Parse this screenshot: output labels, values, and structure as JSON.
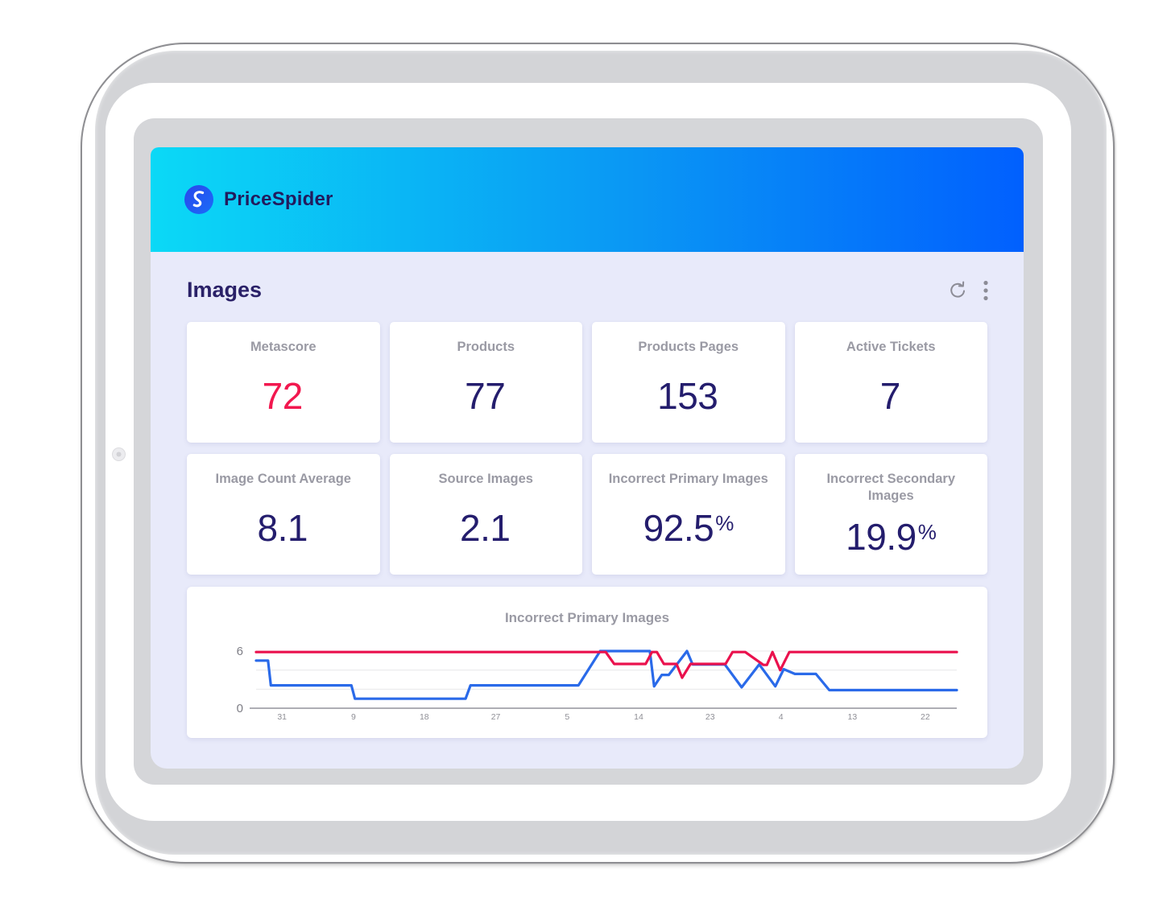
{
  "brand": {
    "name": "PriceSpider"
  },
  "page": {
    "title": "Images"
  },
  "toolbar": {
    "refresh_icon": "refresh",
    "menu_icon": "more-options"
  },
  "cards": [
    {
      "label": "Metascore",
      "value": "72",
      "suffix": "",
      "color": "#f2184f"
    },
    {
      "label": "Products",
      "value": "77",
      "suffix": "",
      "color": "#241d6d"
    },
    {
      "label": "Products Pages",
      "value": "153",
      "suffix": "",
      "color": "#241d6d"
    },
    {
      "label": "Active Tickets",
      "value": "7",
      "suffix": "",
      "color": "#241d6d"
    },
    {
      "label": "Image Count Average",
      "value": "8.1",
      "suffix": "",
      "color": "#241d6d"
    },
    {
      "label": "Source Images",
      "value": "2.1",
      "suffix": "",
      "color": "#241d6d"
    },
    {
      "label": "Incorrect Primary Images",
      "value": "92.5",
      "suffix": "%",
      "color": "#241d6d"
    },
    {
      "label": "Incorrect Secondary Images",
      "value": "19.9",
      "suffix": "%",
      "color": "#241d6d"
    }
  ],
  "chart_data": {
    "type": "line",
    "title": "Incorrect Primary Images",
    "xlabel": "",
    "ylabel": "",
    "ylim": [
      0,
      6
    ],
    "grid": true,
    "legend": "none",
    "y_gridlines": [
      6,
      4,
      2,
      0
    ],
    "y_axis_ticks": [
      {
        "label": "6",
        "value": 6
      },
      {
        "label": "0",
        "value": 0
      }
    ],
    "x_ticks": [
      {
        "label": "31",
        "pct": 3.7
      },
      {
        "label": "9",
        "pct": 13.9
      },
      {
        "label": "18",
        "pct": 24.0
      },
      {
        "label": "27",
        "pct": 34.2
      },
      {
        "label": "5",
        "pct": 44.4
      },
      {
        "label": "14",
        "pct": 54.6
      },
      {
        "label": "23",
        "pct": 64.8
      },
      {
        "label": "4",
        "pct": 74.9
      },
      {
        "label": "13",
        "pct": 85.1
      },
      {
        "label": "22",
        "pct": 95.5
      }
    ],
    "series": [
      {
        "name": "blue-series",
        "color": "#2a6ae9",
        "points": [
          [
            0,
            5
          ],
          [
            1.7,
            5
          ],
          [
            2.1,
            2.4
          ],
          [
            13.6,
            2.4
          ],
          [
            14.1,
            1
          ],
          [
            29.9,
            1
          ],
          [
            30.6,
            2.4
          ],
          [
            46,
            2.4
          ],
          [
            49.1,
            6
          ],
          [
            56.2,
            6
          ],
          [
            56.8,
            2.3
          ],
          [
            57.9,
            3.5
          ],
          [
            58.9,
            3.5
          ],
          [
            61.5,
            6
          ],
          [
            62.3,
            4.6
          ],
          [
            66.9,
            4.6
          ],
          [
            69.3,
            2.2
          ],
          [
            71.8,
            4.6
          ],
          [
            74.1,
            2.3
          ],
          [
            75.3,
            4.1
          ],
          [
            76.9,
            3.6
          ],
          [
            79.9,
            3.6
          ],
          [
            81.8,
            1.9
          ],
          [
            100,
            1.9
          ]
        ]
      },
      {
        "name": "red-series",
        "color": "#ea114d",
        "points": [
          [
            0,
            5.9
          ],
          [
            49.9,
            5.9
          ],
          [
            51.1,
            4.65
          ],
          [
            55.6,
            4.65
          ],
          [
            56.5,
            5.9
          ],
          [
            57.2,
            5.9
          ],
          [
            58.2,
            4.65
          ],
          [
            60,
            4.65
          ],
          [
            60.8,
            3.2
          ],
          [
            62,
            4.65
          ],
          [
            67,
            4.65
          ],
          [
            68,
            5.9
          ],
          [
            69.8,
            5.9
          ],
          [
            72.4,
            4.55
          ],
          [
            72.9,
            4.55
          ],
          [
            73.7,
            5.9
          ],
          [
            74.8,
            4
          ],
          [
            76.1,
            5.9
          ],
          [
            100,
            5.9
          ]
        ]
      }
    ]
  },
  "colors": {
    "accent_red": "#f2184f",
    "navy": "#241d6d",
    "header_gradient_start": "#0bd9f6",
    "header_gradient_end": "#0160fe",
    "chart_red": "#ea114d",
    "chart_blue": "#2a6ae9",
    "label_gray": "#9a9aa4"
  }
}
